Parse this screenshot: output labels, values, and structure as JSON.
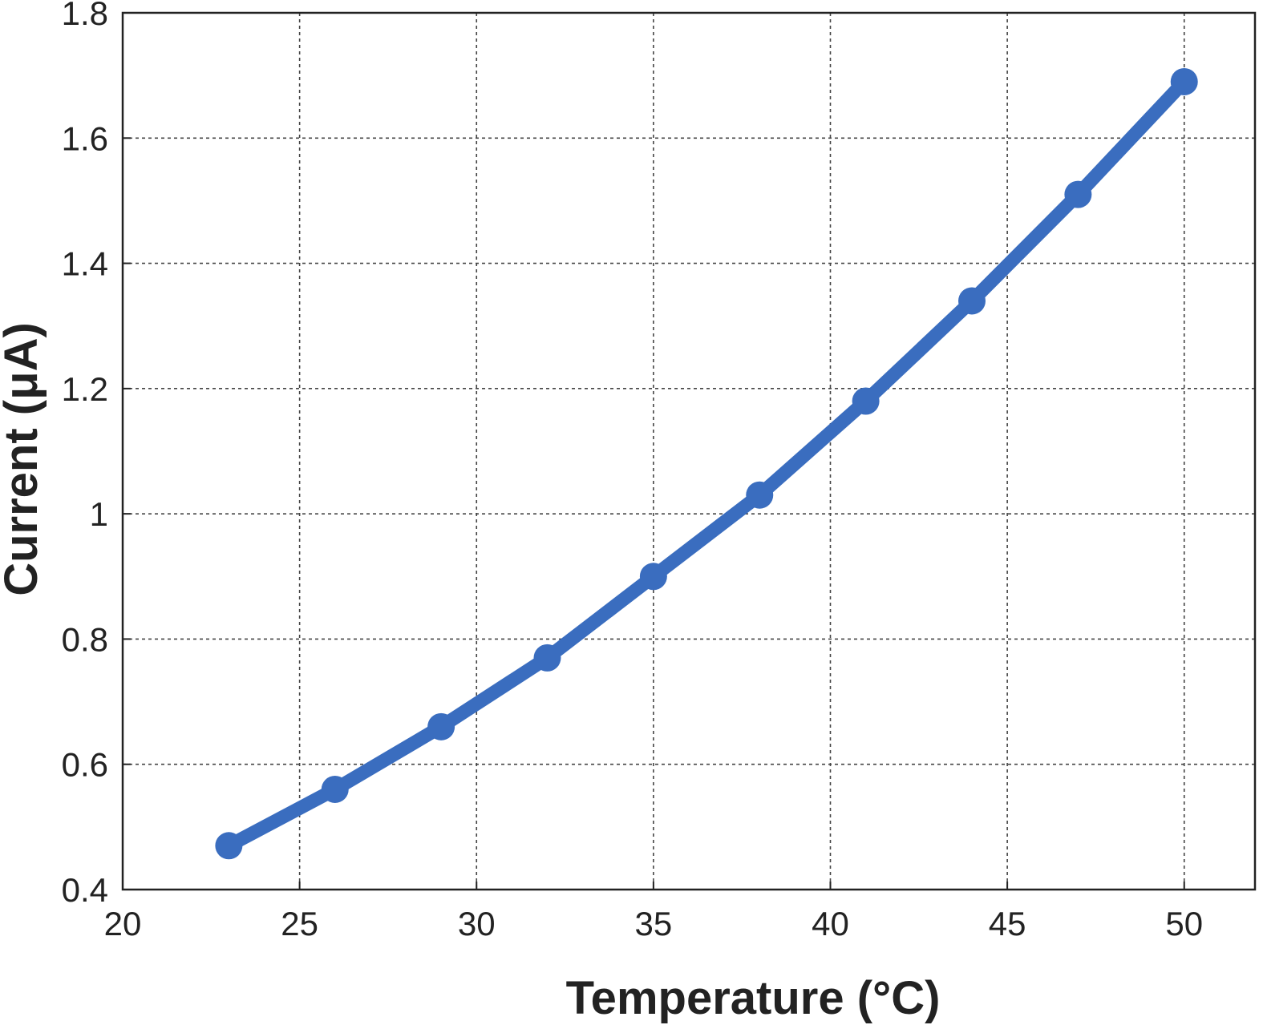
{
  "chart_data": {
    "type": "line",
    "title": "",
    "xlabel": "Temperature (°C)",
    "ylabel": "Current (μA)",
    "xlim": [
      20,
      52
    ],
    "ylim": [
      0.4,
      1.8
    ],
    "xticks": [
      20,
      25,
      30,
      35,
      40,
      45,
      50
    ],
    "yticks": [
      0.4,
      0.6,
      0.8,
      1,
      1.2,
      1.4,
      1.6,
      1.8
    ],
    "grid": true,
    "legend": "none",
    "series": [
      {
        "color": "#3a6dbf",
        "marker": "circle",
        "x": [
          23,
          26,
          29,
          32,
          35,
          38,
          41,
          44,
          47,
          50
        ],
        "y": [
          0.47,
          0.56,
          0.66,
          0.77,
          0.9,
          1.03,
          1.18,
          1.34,
          1.51,
          1.69
        ]
      }
    ]
  }
}
